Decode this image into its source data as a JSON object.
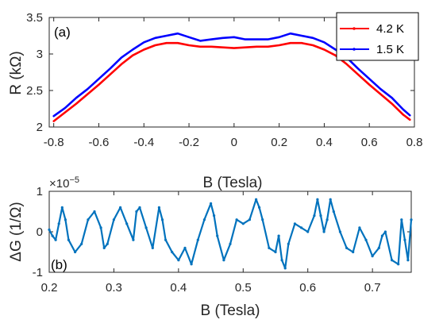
{
  "chart_data": [
    {
      "type": "line",
      "panel_label": "(a)",
      "xlabel": "B (Tesla)",
      "ylabel": "R (kΩ)",
      "xlim": [
        -0.82,
        0.8
      ],
      "ylim": [
        2.0,
        3.5
      ],
      "xticks": [
        -0.8,
        -0.6,
        -0.4,
        -0.2,
        0,
        0.2,
        0.4,
        0.6,
        0.8
      ],
      "xtick_labels": [
        "-0.8",
        "-0.6",
        "-0.4",
        "-0.2",
        "0",
        "0.2",
        "0.4",
        "0.6",
        "0.8"
      ],
      "yticks": [
        2,
        2.5,
        3,
        3.5
      ],
      "ytick_labels": [
        "2",
        "2.5",
        "3",
        "3.5"
      ],
      "grid": false,
      "legend_position": "top-right",
      "series": [
        {
          "name": "4.2 K",
          "color": "#ff0000",
          "x": [
            -0.8,
            -0.75,
            -0.7,
            -0.65,
            -0.6,
            -0.55,
            -0.5,
            -0.45,
            -0.4,
            -0.35,
            -0.3,
            -0.25,
            -0.2,
            -0.15,
            -0.1,
            -0.05,
            0,
            0.05,
            0.1,
            0.15,
            0.2,
            0.25,
            0.3,
            0.35,
            0.4,
            0.45,
            0.5,
            0.55,
            0.6,
            0.65,
            0.7,
            0.75,
            0.78
          ],
          "y": [
            2.08,
            2.2,
            2.32,
            2.45,
            2.58,
            2.72,
            2.86,
            2.98,
            3.06,
            3.12,
            3.15,
            3.15,
            3.12,
            3.1,
            3.1,
            3.09,
            3.08,
            3.09,
            3.1,
            3.1,
            3.12,
            3.15,
            3.15,
            3.12,
            3.06,
            2.98,
            2.86,
            2.72,
            2.58,
            2.45,
            2.32,
            2.17,
            2.1
          ]
        },
        {
          "name": "1.5 K",
          "color": "#0000ff",
          "x": [
            -0.8,
            -0.75,
            -0.7,
            -0.65,
            -0.6,
            -0.55,
            -0.5,
            -0.45,
            -0.4,
            -0.35,
            -0.3,
            -0.25,
            -0.2,
            -0.15,
            -0.1,
            -0.05,
            0,
            0.05,
            0.1,
            0.15,
            0.2,
            0.25,
            0.3,
            0.35,
            0.4,
            0.45,
            0.5,
            0.55,
            0.6,
            0.65,
            0.7,
            0.75,
            0.78
          ],
          "y": [
            2.15,
            2.26,
            2.4,
            2.52,
            2.66,
            2.8,
            2.95,
            3.06,
            3.16,
            3.22,
            3.25,
            3.28,
            3.23,
            3.18,
            3.2,
            3.22,
            3.23,
            3.2,
            3.2,
            3.2,
            3.23,
            3.28,
            3.25,
            3.22,
            3.16,
            3.06,
            2.95,
            2.8,
            2.66,
            2.52,
            2.4,
            2.24,
            2.16
          ]
        }
      ]
    },
    {
      "type": "line",
      "panel_label": "(b)",
      "xlabel": "B (Tesla)",
      "ylabel": "ΔG (1/Ω)",
      "y_multiplier_base": "×10",
      "y_multiplier_exp": "−5",
      "xlim": [
        0.2,
        0.76
      ],
      "ylim": [
        -1,
        1
      ],
      "xticks": [
        0.2,
        0.3,
        0.4,
        0.5,
        0.6,
        0.7
      ],
      "xtick_labels": [
        "0.2",
        "0.3",
        "0.4",
        "0.5",
        "0.6",
        "0.7"
      ],
      "yticks": [
        -1,
        0,
        1
      ],
      "ytick_labels": [
        "-1",
        "0",
        "1"
      ],
      "grid": false,
      "series": [
        {
          "name": "",
          "color": "#0072bd",
          "x": [
            0.2,
            0.205,
            0.21,
            0.215,
            0.22,
            0.225,
            0.23,
            0.24,
            0.25,
            0.26,
            0.27,
            0.28,
            0.285,
            0.29,
            0.3,
            0.31,
            0.32,
            0.33,
            0.335,
            0.34,
            0.35,
            0.36,
            0.37,
            0.375,
            0.38,
            0.39,
            0.4,
            0.41,
            0.42,
            0.43,
            0.44,
            0.45,
            0.455,
            0.46,
            0.47,
            0.48,
            0.49,
            0.5,
            0.51,
            0.52,
            0.525,
            0.53,
            0.54,
            0.55,
            0.555,
            0.56,
            0.565,
            0.57,
            0.58,
            0.59,
            0.6,
            0.61,
            0.615,
            0.62,
            0.625,
            0.63,
            0.635,
            0.64,
            0.65,
            0.66,
            0.67,
            0.68,
            0.69,
            0.7,
            0.71,
            0.715,
            0.72,
            0.73,
            0.74,
            0.745,
            0.75,
            0.755,
            0.76
          ],
          "y": [
            0.05,
            -0.1,
            -0.2,
            0.2,
            0.6,
            0.3,
            -0.2,
            -0.5,
            -0.3,
            0.3,
            0.5,
            0.1,
            -0.4,
            -0.3,
            0.3,
            0.6,
            0.2,
            -0.2,
            0.5,
            0.6,
            0.1,
            -0.4,
            0.6,
            0.3,
            -0.2,
            -0.5,
            -0.7,
            -0.4,
            -0.8,
            -0.2,
            0.3,
            0.7,
            0.4,
            -0.1,
            -0.7,
            -0.3,
            0.3,
            0.2,
            0.3,
            0.8,
            0.6,
            0.3,
            -0.4,
            -0.5,
            -0.1,
            -0.7,
            -0.9,
            -0.3,
            0.2,
            0.1,
            0.0,
            0.4,
            0.8,
            0.4,
            0.0,
            0.3,
            0.8,
            0.5,
            0.0,
            -0.4,
            -0.5,
            0.1,
            -0.2,
            -0.6,
            -0.4,
            -0.1,
            0.0,
            -0.7,
            -0.8,
            0.3,
            -0.2,
            -0.7,
            0.3
          ]
        }
      ]
    }
  ]
}
